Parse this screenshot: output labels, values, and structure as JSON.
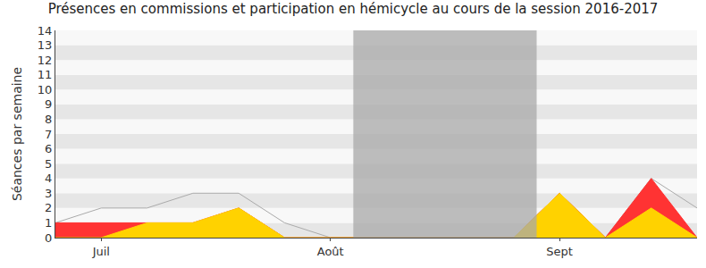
{
  "chart_data": {
    "type": "area",
    "title": "Présences en commissions et participation en hémicycle au cours de la session 2016-2017",
    "y_label": "Séances par semaine",
    "categories": [
      null,
      "Juil",
      null,
      null,
      null,
      null,
      "Août",
      null,
      null,
      null,
      null,
      "Sept",
      null,
      null,
      null
    ],
    "series": [
      {
        "type": "line",
        "color": "#aaaaaa",
        "values": [
          1,
          2,
          2,
          3,
          3,
          1,
          0,
          0,
          0,
          0,
          0,
          3,
          0,
          4,
          2
        ]
      },
      {
        "type": "area",
        "color": "#ff3333",
        "values": [
          1,
          1,
          1,
          1,
          2,
          0,
          0,
          0,
          0,
          0,
          0,
          3,
          0,
          4,
          0
        ]
      },
      {
        "type": "area",
        "color": "#ffd200",
        "values": [
          0,
          0,
          1,
          1,
          2,
          0,
          0,
          0,
          0,
          0,
          0,
          3,
          0,
          2,
          0
        ]
      }
    ],
    "shaded": [
      6.5,
      10.5
    ],
    "ylim": [
      0,
      14
    ],
    "yticks": [
      0,
      1,
      2,
      3,
      4,
      5,
      6,
      7,
      8,
      9,
      10,
      11,
      12,
      13,
      14
    ],
    "grid": true
  }
}
